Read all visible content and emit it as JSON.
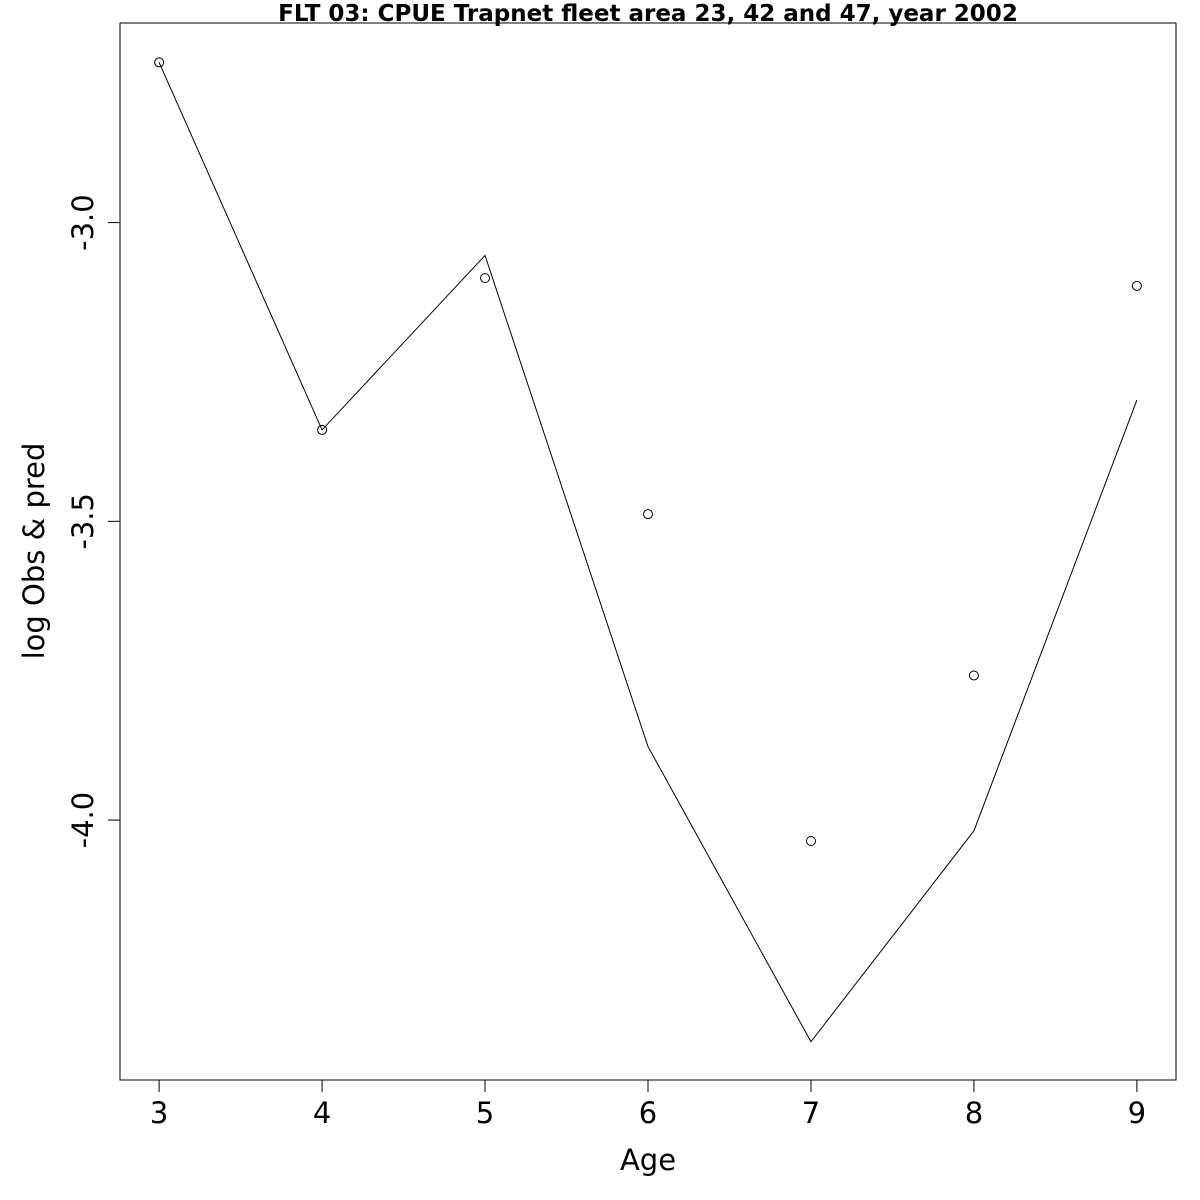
{
  "chart_data": {
    "type": "line",
    "title": "FLT 03: CPUE Trapnet fleet area 23, 42 and 47, year 2002",
    "xlabel": "Age",
    "ylabel": "log Obs & pred",
    "x": [
      3,
      4,
      5,
      6,
      7,
      8,
      9
    ],
    "xticks": [
      "3",
      "4",
      "5",
      "6",
      "7",
      "8",
      "9"
    ],
    "yticks": [
      "-3.0",
      "-3.5",
      "-4.0"
    ],
    "ytick_values": [
      -3.0,
      -3.5,
      -4.0
    ],
    "xlim": [
      2.76,
      9.24
    ],
    "ylim": [
      -4.435,
      -2.666
    ],
    "grid": false,
    "series": [
      {
        "style": "points",
        "values": [
          -2.732,
          -3.347,
          -3.093,
          -3.488,
          -4.035,
          -3.758,
          -3.106
        ]
      },
      {
        "style": "line",
        "values": [
          -2.732,
          -3.347,
          -3.055,
          -3.877,
          -4.371,
          -4.018,
          -3.297
        ]
      }
    ]
  }
}
